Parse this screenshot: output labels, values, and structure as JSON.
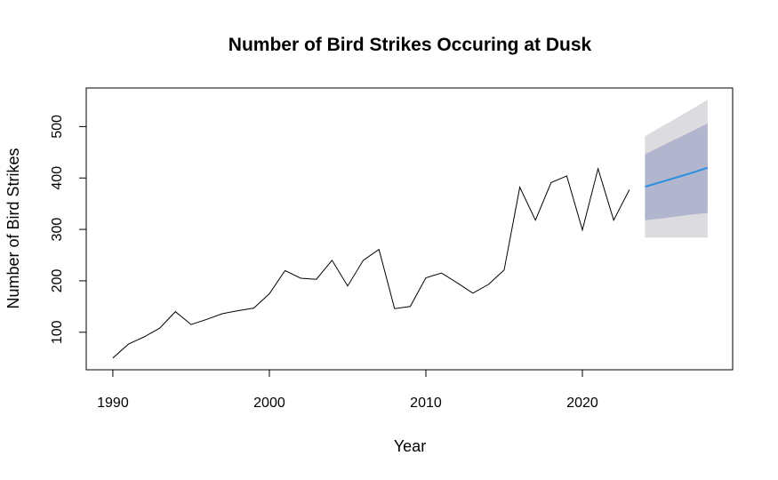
{
  "chart_data": {
    "type": "line",
    "title": "Number of Bird Strikes Occuring at Dusk",
    "xlabel": "Year",
    "ylabel": "Number of Bird Strikes",
    "xlim": [
      1988.3,
      2029.6
    ],
    "ylim": [
      27,
      575
    ],
    "x_ticks": [
      1990,
      2000,
      2010,
      2020
    ],
    "y_ticks": [
      100,
      200,
      300,
      400,
      500
    ],
    "grid": false,
    "legend": "none",
    "series": [
      {
        "x": [
          1990,
          1991,
          1992,
          1993,
          1994,
          1995,
          1996,
          1997,
          1998,
          1999,
          2000,
          2001,
          2002,
          2003,
          2004,
          2005,
          2006,
          2007,
          2008,
          2009,
          2010,
          2011,
          2012,
          2013,
          2014,
          2015,
          2016,
          2017,
          2018,
          2019,
          2020,
          2021,
          2022,
          2023
        ],
        "values": [
          50,
          77,
          91,
          108,
          140,
          115,
          125,
          136,
          142,
          147,
          175,
          220,
          205,
          203,
          240,
          190,
          240,
          261,
          146,
          150,
          206,
          215,
          196,
          176,
          193,
          221,
          382,
          318,
          391,
          404,
          299,
          418,
          318,
          377
        ]
      }
    ],
    "forecast": {
      "x": [
        2024,
        2025,
        2026,
        2027,
        2028
      ],
      "mean": [
        383,
        392,
        401,
        410,
        420
      ],
      "lower_80": [
        318,
        321,
        325,
        329,
        332
      ],
      "upper_80": [
        446,
        461,
        476,
        491,
        506
      ],
      "lower_95": [
        284,
        284,
        284,
        284,
        284
      ],
      "upper_95": [
        481,
        499,
        516,
        534,
        552
      ]
    },
    "colors": {
      "line": "#000000",
      "forecast_mean": "#2b8fe0",
      "band_80": "#b1b5ce",
      "band_95": "#dbdbe0",
      "frame": "#000000"
    }
  }
}
